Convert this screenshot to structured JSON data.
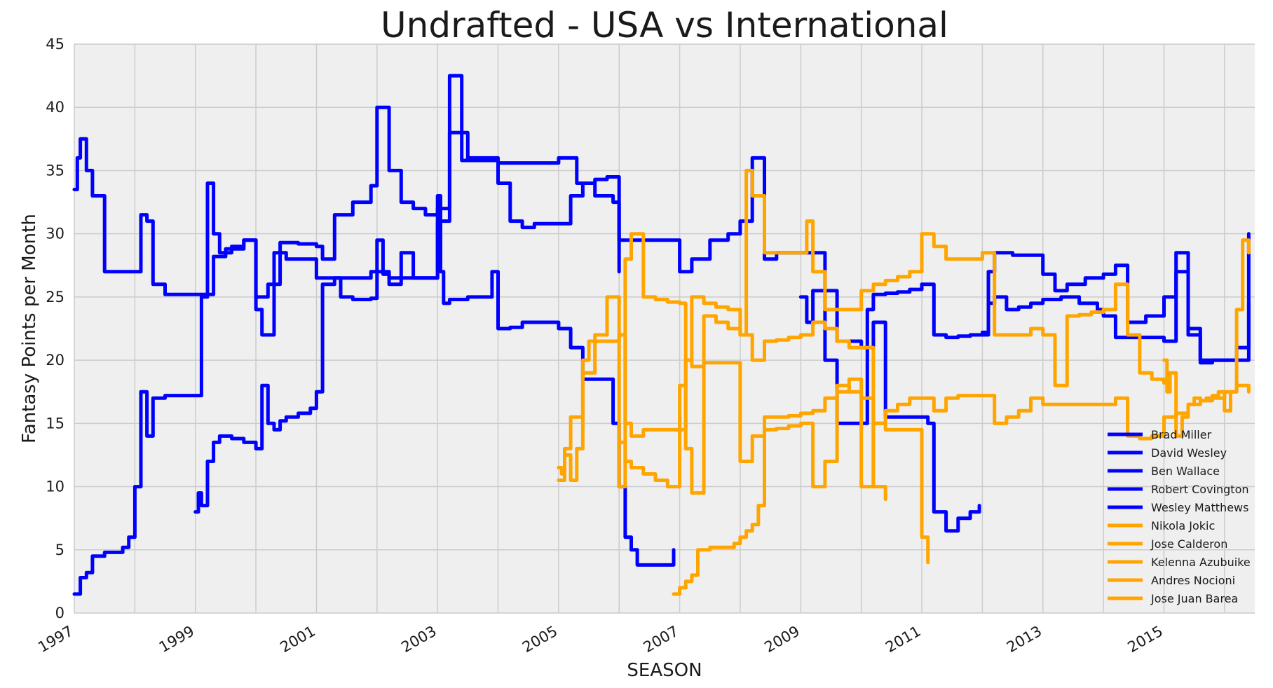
{
  "chart_data": {
    "type": "line",
    "title": "Undrafted - USA vs International",
    "xlabel": "SEASON",
    "ylabel": "Fantasy Points per Month",
    "xlim": [
      1997.0,
      2016.5
    ],
    "ylim": [
      0,
      45
    ],
    "x_ticks": [
      "1997",
      "1999",
      "2001",
      "2003",
      "2005",
      "2007",
      "2009",
      "2011",
      "2013",
      "2015"
    ],
    "y_ticks": [
      "0",
      "5",
      "10",
      "15",
      "20",
      "25",
      "30",
      "35",
      "40",
      "45"
    ],
    "grid": true,
    "legend_position": "lower-right",
    "colors": {
      "USA": "#0000ff",
      "International": "#ffa500",
      "background": "#efefef",
      "grid": "#cccccc"
    },
    "series": [
      {
        "name": "Brad Miller",
        "group": "USA",
        "x": [
          1999.0,
          1999.05,
          1999.1,
          1999.2,
          1999.3,
          1999.4,
          1999.6,
          1999.8,
          2000.0,
          2000.1,
          2000.2,
          2000.3,
          2000.4,
          2000.5,
          2000.7,
          2000.9,
          2001.0,
          2001.1,
          2001.3,
          2001.5,
          2001.7,
          2001.9,
          2002.0,
          2002.1,
          2002.2,
          2002.4,
          2002.6,
          2002.8,
          2003.0,
          2003.05,
          2003.1,
          2003.2,
          2003.5,
          2003.9,
          2004.0,
          2004.2,
          2004.4,
          2004.6,
          2004.8,
          2005.0,
          2005.2,
          2005.4,
          2005.6,
          2005.8,
          2005.9,
          2006.0,
          2006.1,
          2006.2,
          2006.3,
          2006.5,
          2006.8,
          2006.9
        ],
        "y": [
          8.0,
          9.5,
          8.5,
          12.0,
          13.5,
          14.0,
          13.8,
          13.5,
          13.0,
          18.0,
          15.0,
          14.5,
          15.2,
          15.5,
          15.8,
          16.2,
          17.5,
          26.0,
          26.5,
          26.5,
          26.5,
          27.0,
          29.5,
          26.8,
          26.5,
          26.5,
          26.5,
          26.5,
          33.0,
          27.0,
          24.5,
          24.8,
          25.0,
          27.0,
          22.5,
          22.6,
          23.0,
          23.0,
          23.0,
          22.5,
          21.0,
          18.5,
          18.5,
          18.5,
          15.0,
          10.0,
          6.0,
          5.0,
          3.8,
          3.8,
          3.8,
          5.0
        ]
      },
      {
        "name": "David Wesley",
        "group": "USA",
        "x": [
          1997.0,
          1997.1,
          1997.2,
          1997.3,
          1997.5,
          1997.8,
          1997.9,
          1998.0,
          1998.1,
          1998.2,
          1998.3,
          1998.5,
          1998.8,
          1999.0,
          1999.1,
          1999.2,
          1999.3,
          1999.4,
          1999.6,
          1999.8,
          2000.0,
          2000.1,
          2000.3,
          2000.5,
          2000.8,
          2001.0,
          2001.2,
          2001.4,
          2001.6,
          2001.8,
          2001.9,
          2002.0,
          2002.2,
          2002.4,
          2002.6,
          2002.8,
          2003.0,
          2003.2,
          2003.5,
          2003.9,
          2004.0,
          2004.2,
          2004.4,
          2004.6,
          2004.8,
          2005.0,
          2005.2,
          2005.4,
          2005.6,
          2005.8,
          2006.0
        ],
        "y": [
          1.5,
          2.8,
          3.2,
          4.5,
          4.8,
          5.2,
          6.0,
          10.0,
          17.5,
          14.0,
          17.0,
          17.2,
          17.2,
          17.2,
          25.0,
          34.0,
          30.0,
          28.5,
          29.0,
          29.5,
          24.0,
          22.0,
          28.5,
          28.0,
          28.0,
          26.5,
          26.5,
          25.0,
          24.8,
          24.8,
          24.9,
          27.0,
          26.0,
          28.5,
          26.5,
          26.5,
          31.0,
          38.0,
          36.0,
          36.0,
          34.0,
          31.0,
          30.5,
          30.8,
          30.8,
          30.8,
          33.0,
          34.0,
          34.3,
          34.5,
          27.0
        ]
      },
      {
        "name": "Ben Wallace",
        "group": "USA",
        "x": [
          1997.0,
          1997.05,
          1997.1,
          1997.2,
          1997.3,
          1997.5,
          1997.7,
          1997.9,
          1998.0,
          1998.1,
          1998.2,
          1998.3,
          1998.5,
          1998.8,
          1999.0,
          1999.1,
          1999.3,
          1999.5,
          1999.8,
          2000.0,
          2000.2,
          2000.4,
          2000.7,
          2001.0,
          2001.1,
          2001.3,
          2001.6,
          2001.9,
          2002.0,
          2002.2,
          2002.4,
          2002.6,
          2002.8,
          2003.0,
          2003.2,
          2003.4,
          2003.6,
          2003.9,
          2004.0,
          2004.2,
          2004.5,
          2004.8,
          2005.0,
          2005.3,
          2005.6,
          2005.9,
          2006.0,
          2006.2,
          2006.4,
          2006.6,
          2006.8,
          2007.0,
          2007.2,
          2007.5,
          2007.8,
          2008.0,
          2008.2,
          2008.4,
          2008.6,
          2008.8,
          2009.0,
          2009.2,
          2009.4,
          2009.6,
          2009.8,
          2010.0,
          2010.2,
          2010.4,
          2010.6,
          2010.8,
          2011.0,
          2011.1,
          2011.2,
          2011.4,
          2011.6,
          2011.8,
          2011.95
        ],
        "y": [
          33.5,
          36.0,
          37.5,
          35.0,
          33.0,
          27.0,
          27.0,
          27.0,
          27.0,
          31.5,
          31.0,
          26.0,
          25.2,
          25.2,
          25.2,
          25.2,
          28.2,
          28.8,
          29.5,
          25.0,
          26.0,
          29.3,
          29.2,
          29.0,
          28.0,
          31.5,
          32.5,
          33.8,
          40.0,
          35.0,
          32.5,
          32.0,
          31.5,
          32.0,
          42.5,
          35.8,
          35.8,
          35.8,
          35.6,
          35.6,
          35.6,
          35.6,
          36.0,
          34.0,
          33.0,
          32.5,
          29.5,
          29.5,
          29.5,
          29.5,
          29.5,
          27.0,
          28.0,
          29.5,
          30.0,
          31.0,
          36.0,
          28.0,
          28.5,
          28.5,
          28.5,
          28.5,
          25.5,
          21.5,
          21.5,
          21.0,
          23.0,
          15.5,
          15.5,
          15.5,
          15.5,
          15.0,
          8.0,
          6.5,
          7.5,
          8.0,
          8.5
        ]
      },
      {
        "name": "Robert Covington",
        "group": "USA",
        "x": [
          2012.0,
          2012.1,
          2012.2,
          2012.5,
          2012.8,
          2013.0,
          2013.2,
          2013.4,
          2013.7,
          2014.0,
          2014.2,
          2014.4,
          2014.7,
          2015.0,
          2015.2,
          2015.4,
          2015.6,
          2015.8,
          2016.0,
          2016.2,
          2016.4
        ],
        "y": [
          22.0,
          27.0,
          28.5,
          28.3,
          28.3,
          26.8,
          25.5,
          26.0,
          26.5,
          26.8,
          27.5,
          23.0,
          23.5,
          25.0,
          28.5,
          22.0,
          19.8,
          20.0,
          20.0,
          20.0,
          30.0
        ]
      },
      {
        "name": "Wesley Matthews",
        "group": "USA",
        "x": [
          2009.0,
          2009.1,
          2009.2,
          2009.4,
          2009.6,
          2009.8,
          2010.0,
          2010.1,
          2010.2,
          2010.4,
          2010.6,
          2010.8,
          2011.0,
          2011.2,
          2011.4,
          2011.6,
          2011.8,
          2012.0,
          2012.1,
          2012.2,
          2012.4,
          2012.6,
          2012.8,
          2013.0,
          2013.3,
          2013.6,
          2013.9,
          2014.0,
          2014.2,
          2014.5,
          2014.8,
          2015.0,
          2015.2,
          2015.4,
          2015.6,
          2015.8,
          2016.0,
          2016.2,
          2016.4
        ],
        "y": [
          25.0,
          23.0,
          25.5,
          20.0,
          15.0,
          15.0,
          15.0,
          24.0,
          25.2,
          25.3,
          25.4,
          25.6,
          26.0,
          22.0,
          21.8,
          21.9,
          22.0,
          22.2,
          24.5,
          25.0,
          24.0,
          24.2,
          24.5,
          24.8,
          25.0,
          24.5,
          24.0,
          23.5,
          21.8,
          21.8,
          21.8,
          21.5,
          27.0,
          22.5,
          20.0,
          20.0,
          20.0,
          21.0,
          24.5
        ]
      },
      {
        "name": "Nikola Jokic",
        "group": "International",
        "x": [
          2015.0,
          2015.05,
          2015.1,
          2015.2,
          2015.3,
          2015.4,
          2015.5,
          2015.6,
          2015.7,
          2015.8,
          2015.9,
          2016.0,
          2016.1,
          2016.2,
          2016.3,
          2016.4
        ],
        "y": [
          20.0,
          17.5,
          19.0,
          14.0,
          15.5,
          16.5,
          17.0,
          16.8,
          17.0,
          17.2,
          17.5,
          16.0,
          17.5,
          24.0,
          29.5,
          28.5
        ]
      },
      {
        "name": "Jose Calderon",
        "group": "International",
        "x": [
          2005.0,
          2005.05,
          2005.1,
          2005.2,
          2005.3,
          2005.4,
          2005.5,
          2005.7,
          2005.9,
          2006.0,
          2006.1,
          2006.2,
          2006.4,
          2006.6,
          2006.8,
          2007.0,
          2007.1,
          2007.2,
          2007.4,
          2007.6,
          2007.8,
          2008.0,
          2008.1,
          2008.2,
          2008.4,
          2008.6,
          2008.8,
          2009.0,
          2009.1,
          2009.2,
          2009.4,
          2009.6,
          2009.8,
          2010.0,
          2010.2,
          2010.4,
          2010.6,
          2010.8,
          2011.0,
          2011.2,
          2011.4,
          2011.6,
          2011.8,
          2012.0,
          2012.2,
          2012.4,
          2012.6,
          2012.8,
          2013.0,
          2013.2,
          2013.4,
          2013.6,
          2013.8,
          2014.0,
          2014.2,
          2014.4,
          2014.6,
          2014.8,
          2015.0
        ],
        "y": [
          11.5,
          11.0,
          12.5,
          10.5,
          13.0,
          20.0,
          21.5,
          21.5,
          21.5,
          22.0,
          15.0,
          14.0,
          14.5,
          14.5,
          14.5,
          14.5,
          20.0,
          25.0,
          24.5,
          24.2,
          24.0,
          22.0,
          35.0,
          33.0,
          28.5,
          28.5,
          28.5,
          28.5,
          31.0,
          27.0,
          24.0,
          24.0,
          24.0,
          25.5,
          26.0,
          26.3,
          26.6,
          27.0,
          30.0,
          29.0,
          28.0,
          28.0,
          28.0,
          28.5,
          22.0,
          22.0,
          22.0,
          22.5,
          22.0,
          18.0,
          23.5,
          23.6,
          23.8,
          24.0,
          26.0,
          22.0,
          19.0,
          18.5,
          18.2
        ]
      },
      {
        "name": "Kelenna Azubuike",
        "group": "International",
        "x": [
          2006.9,
          2007.0,
          2007.1,
          2007.2,
          2007.3,
          2007.5,
          2007.7,
          2007.9,
          2008.0,
          2008.1,
          2008.2,
          2008.3,
          2008.4,
          2008.6,
          2008.8,
          2009.0,
          2009.2,
          2009.4,
          2009.6,
          2009.8,
          2010.0,
          2010.2,
          2010.4,
          2010.6,
          2010.8,
          2011.0,
          2011.1
        ],
        "y": [
          1.5,
          2.0,
          2.5,
          3.0,
          5.0,
          5.2,
          5.2,
          5.5,
          6.0,
          6.5,
          7.0,
          8.5,
          15.5,
          15.5,
          15.6,
          15.8,
          16.0,
          17.0,
          18.0,
          17.5,
          17.0,
          15.0,
          14.5,
          14.5,
          14.5,
          6.0,
          4.0
        ]
      },
      {
        "name": "Andres Nocioni",
        "group": "International",
        "x": [
          2005.0,
          2005.1,
          2005.2,
          2005.4,
          2005.6,
          2005.8,
          2006.0,
          2006.1,
          2006.2,
          2006.4,
          2006.6,
          2006.8,
          2007.0,
          2007.1,
          2007.2,
          2007.4,
          2007.6,
          2007.8,
          2008.0,
          2008.2,
          2008.4,
          2008.6,
          2008.8,
          2009.0,
          2009.2,
          2009.4,
          2009.6,
          2009.8,
          2010.0,
          2010.2,
          2010.4
        ],
        "y": [
          10.5,
          13.0,
          15.5,
          19.0,
          22.0,
          25.0,
          10.0,
          28.0,
          30.0,
          25.0,
          24.8,
          24.6,
          24.5,
          13.0,
          9.5,
          23.5,
          23.0,
          22.5,
          22.0,
          20.0,
          21.5,
          21.6,
          21.8,
          22.0,
          23.0,
          22.5,
          21.5,
          21.0,
          21.0,
          10.0,
          9.0
        ]
      },
      {
        "name": "Jose Juan Barea",
        "group": "International",
        "x": [
          2006.0,
          2006.1,
          2006.2,
          2006.4,
          2006.6,
          2006.8,
          2007.0,
          2007.1,
          2007.2,
          2007.4,
          2007.6,
          2007.8,
          2008.0,
          2008.2,
          2008.4,
          2008.6,
          2008.8,
          2009.0,
          2009.2,
          2009.4,
          2009.6,
          2009.8,
          2010.0,
          2010.2,
          2010.4,
          2010.6,
          2010.8,
          2011.0,
          2011.2,
          2011.4,
          2011.6,
          2011.8,
          2012.0,
          2012.2,
          2012.4,
          2012.6,
          2012.8,
          2013.0,
          2013.2,
          2013.4,
          2013.6,
          2013.8,
          2014.0,
          2014.2,
          2014.4,
          2014.6,
          2014.8,
          2015.0,
          2015.2,
          2015.4,
          2015.6,
          2015.8,
          2016.0,
          2016.2,
          2016.4
        ],
        "y": [
          13.5,
          12.0,
          11.5,
          11.0,
          10.5,
          10.0,
          18.0,
          20.0,
          19.5,
          19.8,
          19.8,
          19.8,
          12.0,
          14.0,
          14.5,
          14.6,
          14.8,
          15.0,
          10.0,
          12.0,
          17.5,
          18.5,
          10.0,
          15.0,
          16.0,
          16.5,
          17.0,
          17.0,
          16.0,
          17.0,
          17.2,
          17.2,
          17.2,
          15.0,
          15.5,
          16.0,
          17.0,
          16.5,
          16.5,
          16.5,
          16.5,
          16.5,
          16.5,
          17.0,
          14.0,
          13.8,
          14.0,
          15.5,
          15.8,
          16.5,
          16.8,
          17.0,
          17.5,
          18.0,
          17.5
        ]
      }
    ]
  }
}
